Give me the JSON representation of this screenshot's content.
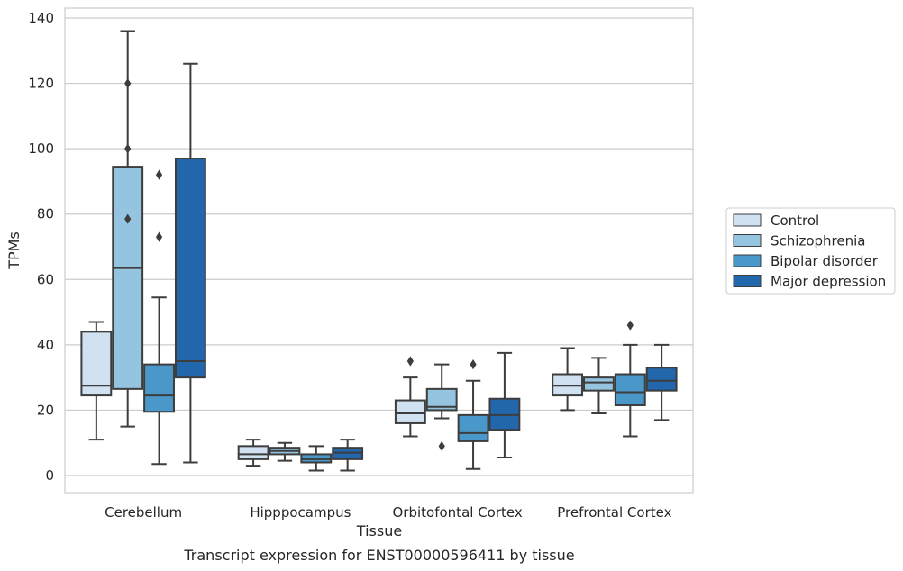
{
  "chart_data": {
    "type": "boxplot",
    "title": "",
    "caption": "Transcript expression for ENST00000596411 by tissue",
    "xlabel": "Tissue",
    "ylabel": "TPMs",
    "ylim": [
      -5.5,
      142
    ],
    "yticks": [
      0,
      20,
      40,
      60,
      80,
      100,
      120,
      140
    ],
    "grid": true,
    "legend_position": "right",
    "categories": [
      "Cerebellum",
      "Hipppocampus",
      "Orbitofontal Cortex",
      "Prefrontal Cortex"
    ],
    "series": [
      {
        "name": "Control",
        "color": "#d0e1f2",
        "boxes": [
          {
            "whislo": 11,
            "q1": 24.5,
            "med": 27.5,
            "q3": 44,
            "whishi": 47,
            "fliers": []
          },
          {
            "whislo": 3,
            "q1": 5,
            "med": 6.5,
            "q3": 9,
            "whishi": 11,
            "fliers": []
          },
          {
            "whislo": 12,
            "q1": 16,
            "med": 19,
            "q3": 23,
            "whishi": 30,
            "fliers": [
              35
            ]
          },
          {
            "whislo": 20,
            "q1": 24.5,
            "med": 27.5,
            "q3": 31,
            "whishi": 39,
            "fliers": []
          }
        ]
      },
      {
        "name": "Schizophrenia",
        "color": "#94c4df",
        "boxes": [
          {
            "whislo": 15,
            "q1": 26.5,
            "med": 63.5,
            "q3": 94.5,
            "whishi": 136,
            "fliers": [
              100,
              78.5,
              120
            ]
          },
          {
            "whislo": 4.5,
            "q1": 6.5,
            "med": 7.5,
            "q3": 8.5,
            "whishi": 10,
            "fliers": []
          },
          {
            "whislo": 17.5,
            "q1": 20,
            "med": 21,
            "q3": 26.5,
            "whishi": 34,
            "fliers": [
              9
            ]
          },
          {
            "whislo": 19,
            "q1": 26,
            "med": 28.5,
            "q3": 30,
            "whishi": 36,
            "fliers": []
          }
        ]
      },
      {
        "name": "Bipolar disorder",
        "color": "#4a98c9",
        "boxes": [
          {
            "whislo": 3.5,
            "q1": 19.5,
            "med": 24.5,
            "q3": 34,
            "whishi": 54.5,
            "fliers": [
              73,
              92
            ]
          },
          {
            "whislo": 1.5,
            "q1": 4,
            "med": 5,
            "q3": 6.5,
            "whishi": 9,
            "fliers": []
          },
          {
            "whislo": 2,
            "q1": 10.5,
            "med": 13,
            "q3": 18.5,
            "whishi": 29,
            "fliers": [
              34
            ]
          },
          {
            "whislo": 12,
            "q1": 21.5,
            "med": 25.5,
            "q3": 31,
            "whishi": 40,
            "fliers": [
              46
            ]
          }
        ]
      },
      {
        "name": "Major depression",
        "color": "#2266ac",
        "boxes": [
          {
            "whislo": 4,
            "q1": 30,
            "med": 35,
            "q3": 97,
            "whishi": 126,
            "fliers": []
          },
          {
            "whislo": 1.5,
            "q1": 5,
            "med": 7,
            "q3": 8.5,
            "whishi": 11,
            "fliers": []
          },
          {
            "whislo": 5.5,
            "q1": 14,
            "med": 18.5,
            "q3": 23.5,
            "whishi": 37.5,
            "fliers": []
          },
          {
            "whislo": 17,
            "q1": 26,
            "med": 29,
            "q3": 33,
            "whishi": 40,
            "fliers": []
          }
        ]
      }
    ]
  }
}
